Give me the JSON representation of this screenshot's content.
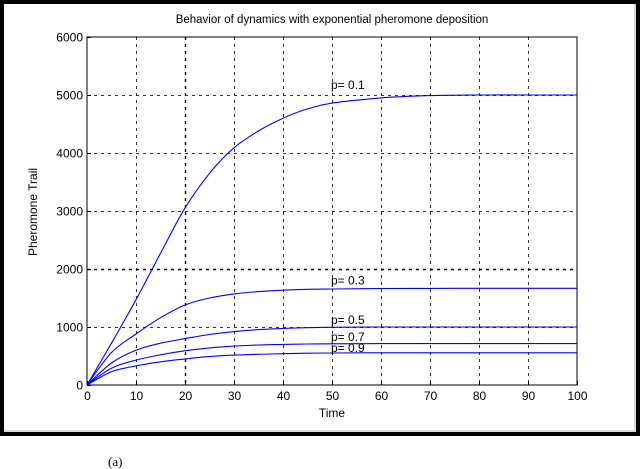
{
  "chart_data": {
    "type": "line",
    "title": "Behavior of dynamics with exponential pheromone deposition",
    "xlabel": "Time",
    "ylabel": "Pheromone Trail",
    "xlim": [
      0,
      100
    ],
    "ylim": [
      0,
      6000
    ],
    "xticks": [
      0,
      10,
      20,
      30,
      40,
      50,
      60,
      70,
      80,
      90,
      100
    ],
    "yticks": [
      0,
      1000,
      2000,
      3000,
      4000,
      5000,
      6000
    ],
    "grid": true,
    "line_color": "#0000ff",
    "x": [
      0,
      5,
      10,
      15,
      20,
      25,
      30,
      35,
      40,
      45,
      50,
      60,
      70,
      80,
      90,
      100
    ],
    "series": [
      {
        "name": "p= 0.1",
        "values": [
          0,
          720,
          1470,
          2270,
          3050,
          3650,
          4090,
          4380,
          4600,
          4760,
          4860,
          4950,
          4990,
          5000,
          5000,
          5000
        ]
      },
      {
        "name": "p= 0.3",
        "values": [
          0,
          560,
          880,
          1160,
          1380,
          1500,
          1570,
          1610,
          1635,
          1650,
          1655,
          1663,
          1666,
          1667,
          1667,
          1667
        ]
      },
      {
        "name": "p= 0.5",
        "values": [
          0,
          380,
          600,
          720,
          800,
          870,
          920,
          955,
          975,
          988,
          995,
          1000,
          1000,
          1000,
          1000,
          1000
        ]
      },
      {
        "name": "p= 0.7",
        "values": [
          0,
          290,
          430,
          520,
          590,
          640,
          670,
          690,
          700,
          707,
          710,
          713,
          714,
          714,
          714,
          714
        ]
      },
      {
        "name": "p= 0.9",
        "values": [
          0,
          230,
          330,
          400,
          450,
          490,
          515,
          530,
          540,
          548,
          552,
          555,
          556,
          556,
          556,
          556
        ]
      }
    ],
    "annotations": [
      {
        "text": "p= 0.1",
        "x": 50,
        "y": 5100
      },
      {
        "text": "p= 0.3",
        "x": 50,
        "y": 1730
      },
      {
        "text": "p= 0.5",
        "x": 50,
        "y": 1050
      },
      {
        "text": "p= 0.7",
        "x": 50,
        "y": 760
      },
      {
        "text": "p= 0.9",
        "x": 50,
        "y": 570
      }
    ]
  },
  "caption": "(a)"
}
